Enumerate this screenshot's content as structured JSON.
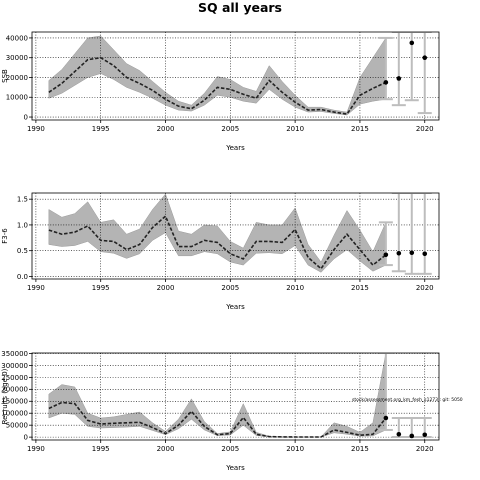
{
  "title": "SQ all years",
  "colors": {
    "band": "#b4b4b4",
    "line": "#222222",
    "proj": "#bdbdbd",
    "grid": "#000000"
  },
  "chart_data": [
    {
      "type": "line",
      "xlabel": "Years",
      "ylabel": "SSB",
      "xlim": [
        1989.7,
        2021.1
      ],
      "ylim": [
        -1500,
        43000
      ],
      "xticks": [
        1990,
        1995,
        2000,
        2005,
        2010,
        2015,
        2020
      ],
      "yticks": [
        0,
        10000,
        20000,
        30000,
        40000
      ],
      "ytick_labels": [
        "0",
        "10000",
        "20000",
        "30000",
        "40000"
      ],
      "grid": true,
      "x": [
        1991,
        1992,
        1993,
        1994,
        1995,
        1996,
        1997,
        1998,
        1999,
        2000,
        2001,
        2002,
        2003,
        2004,
        2005,
        2006,
        2007,
        2008,
        2009,
        2010,
        2011,
        2012,
        2013,
        2014,
        2015,
        2016,
        2017
      ],
      "series": [
        {
          "role": "median",
          "values": [
            12500,
            17000,
            23000,
            29000,
            30000,
            26000,
            20000,
            17000,
            13500,
            9000,
            5500,
            4200,
            8500,
            15000,
            14000,
            11500,
            9500,
            18500,
            12500,
            7500,
            3500,
            3800,
            2500,
            1500,
            11000,
            14500,
            17500
          ]
        },
        {
          "role": "lower",
          "values": [
            9500,
            12000,
            16000,
            20000,
            22000,
            19000,
            15000,
            12500,
            9500,
            6000,
            3500,
            3000,
            6000,
            11000,
            10000,
            8000,
            7000,
            14000,
            9000,
            5000,
            2500,
            2800,
            1800,
            1000,
            6500,
            8000,
            9000
          ]
        },
        {
          "role": "upper",
          "values": [
            18500,
            24000,
            32000,
            40000,
            41000,
            34000,
            27000,
            23500,
            18000,
            12500,
            8000,
            6000,
            12000,
            20500,
            19000,
            15000,
            13000,
            26000,
            18000,
            11000,
            5000,
            5000,
            3500,
            2500,
            20000,
            30000,
            40000
          ]
        }
      ],
      "projection": {
        "x": [
          2018,
          2019,
          2020
        ],
        "points": [
          19500,
          37500,
          30000
        ],
        "low": [
          6000,
          8500,
          2000
        ],
        "high": [
          43000,
          43000,
          43000
        ]
      }
    },
    {
      "type": "line",
      "xlabel": "Years",
      "ylabel": "F3-6",
      "xlim": [
        1989.7,
        2021.1
      ],
      "ylim": [
        -0.05,
        1.62
      ],
      "xticks": [
        1990,
        1995,
        2000,
        2005,
        2010,
        2015,
        2020
      ],
      "yticks": [
        0.0,
        0.5,
        1.0,
        1.5
      ],
      "ytick_labels": [
        "0.0",
        "0.5",
        "1.0",
        "1.5"
      ],
      "grid": true,
      "x": [
        1991,
        1992,
        1993,
        1994,
        1995,
        1996,
        1997,
        1998,
        1999,
        2000,
        2001,
        2002,
        2003,
        2004,
        2005,
        2006,
        2007,
        2008,
        2009,
        2010,
        2011,
        2012,
        2013,
        2014,
        2015,
        2016,
        2017
      ],
      "series": [
        {
          "role": "median",
          "values": [
            0.9,
            0.82,
            0.86,
            0.98,
            0.7,
            0.68,
            0.52,
            0.62,
            0.95,
            1.17,
            0.58,
            0.58,
            0.7,
            0.66,
            0.44,
            0.34,
            0.68,
            0.68,
            0.66,
            0.91,
            0.37,
            0.15,
            0.52,
            0.82,
            0.52,
            0.22,
            0.42
          ]
        },
        {
          "role": "lower",
          "values": [
            0.62,
            0.58,
            0.6,
            0.68,
            0.48,
            0.45,
            0.35,
            0.44,
            0.7,
            0.85,
            0.4,
            0.4,
            0.48,
            0.44,
            0.28,
            0.22,
            0.45,
            0.46,
            0.44,
            0.6,
            0.22,
            0.08,
            0.34,
            0.52,
            0.3,
            0.1,
            0.22
          ]
        },
        {
          "role": "upper",
          "values": [
            1.3,
            1.15,
            1.22,
            1.45,
            1.05,
            1.1,
            0.82,
            0.92,
            1.3,
            1.6,
            0.88,
            0.82,
            1.0,
            0.98,
            0.68,
            0.55,
            1.05,
            1.0,
            1.0,
            1.33,
            0.62,
            0.28,
            0.8,
            1.28,
            0.9,
            0.48,
            1.05
          ]
        }
      ],
      "projection": {
        "x": [
          2018,
          2019,
          2020
        ],
        "points": [
          0.45,
          0.46,
          0.44
        ],
        "low": [
          0.1,
          0.05,
          0.05
        ],
        "high": [
          1.62,
          1.62,
          1.62
        ]
      }
    },
    {
      "type": "line",
      "xlabel": "Years",
      "ylabel": "Recruits (age 0)",
      "xlim": [
        1989.7,
        2021.1
      ],
      "ylim": [
        -12000,
        352000
      ],
      "xticks": [
        1990,
        1995,
        2000,
        2005,
        2010,
        2015,
        2020
      ],
      "yticks": [
        0,
        50000,
        100000,
        150000,
        200000,
        250000,
        300000,
        350000
      ],
      "ytick_labels": [
        "0",
        "50000",
        "100000",
        "150000",
        "200000",
        "250000",
        "300000",
        "350000"
      ],
      "grid": true,
      "annotation": "stock/assessment.org_km_fesh_s1273 : git: 5050",
      "x": [
        1991,
        1992,
        1993,
        1994,
        1995,
        1996,
        1997,
        1998,
        1999,
        2000,
        2001,
        2002,
        2003,
        2004,
        2005,
        2006,
        2007,
        2008,
        2009,
        2010,
        2011,
        2012,
        2013,
        2014,
        2015,
        2016,
        2017
      ],
      "series": [
        {
          "role": "median",
          "values": [
            120000,
            145000,
            140000,
            70000,
            55000,
            58000,
            60000,
            62000,
            40000,
            15000,
            50000,
            108000,
            45000,
            10000,
            15000,
            82000,
            12000,
            2000,
            1000,
            500,
            500,
            500,
            30000,
            20000,
            8000,
            12000,
            80000
          ]
        },
        {
          "role": "lower",
          "values": [
            80000,
            100000,
            95000,
            45000,
            38000,
            40000,
            42000,
            45000,
            28000,
            10000,
            35000,
            75000,
            30000,
            6000,
            9000,
            50000,
            7000,
            1000,
            500,
            200,
            200,
            300,
            18000,
            12000,
            4000,
            5000,
            30000
          ]
        },
        {
          "role": "upper",
          "values": [
            180000,
            220000,
            210000,
            100000,
            80000,
            85000,
            95000,
            105000,
            60000,
            24000,
            75000,
            160000,
            65000,
            15000,
            22000,
            140000,
            20000,
            4000,
            2000,
            1000,
            1000,
            1000,
            60000,
            45000,
            20000,
            60000,
            352000
          ]
        }
      ],
      "projection": {
        "x": [
          2018,
          2019,
          2020
        ],
        "points": [
          12000,
          5000,
          10000
        ],
        "low": [
          500,
          500,
          500
        ],
        "high": [
          80000,
          80000,
          80000
        ]
      }
    }
  ]
}
